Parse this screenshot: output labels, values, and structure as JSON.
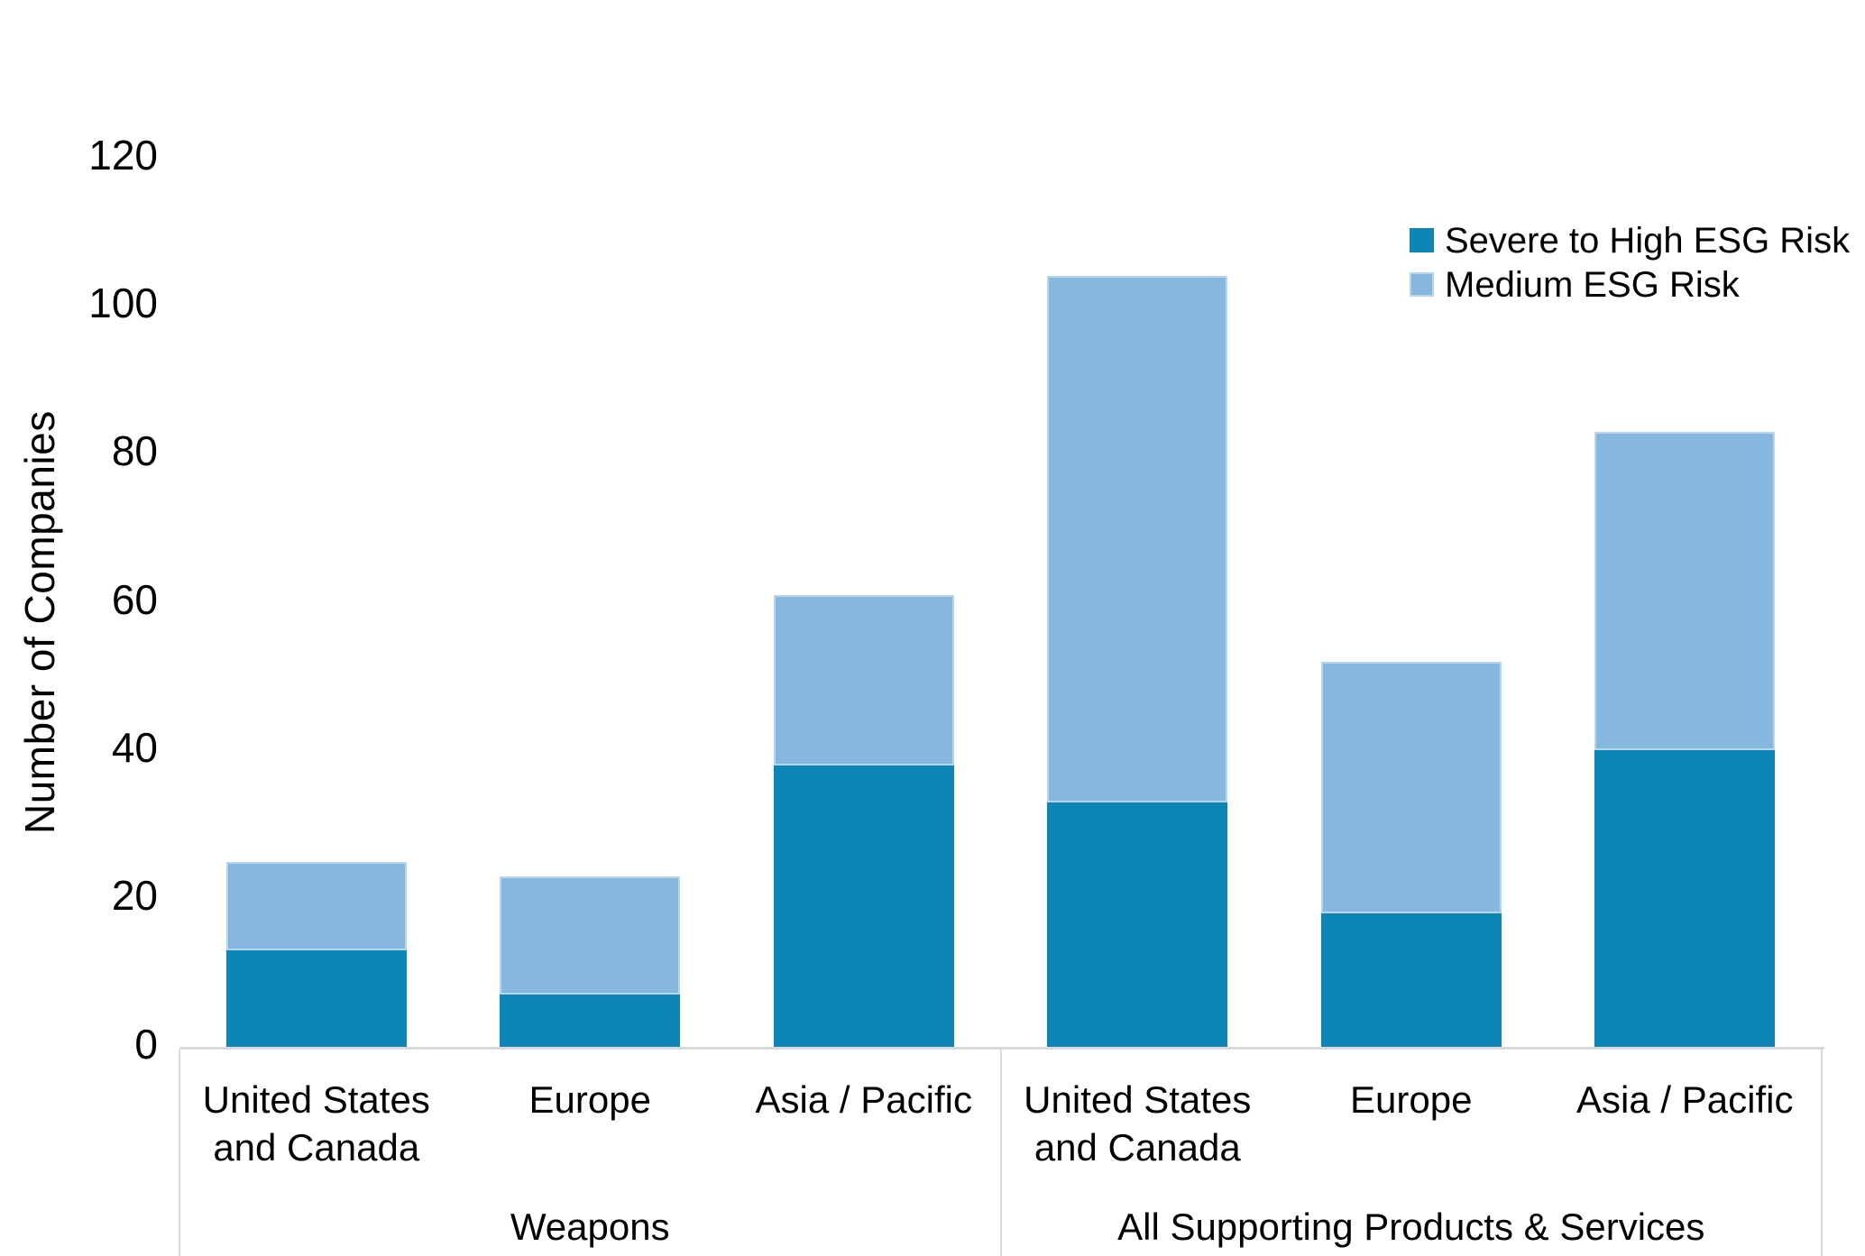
{
  "chart_data": {
    "type": "bar",
    "stacked": true,
    "title": "",
    "ylabel": "Number of Companies",
    "xlabel": "",
    "ylim": [
      0,
      120
    ],
    "yticks": [
      0,
      20,
      40,
      60,
      80,
      100,
      120
    ],
    "grid": false,
    "legend_position": "top-right",
    "groups": [
      {
        "label": "Weapons",
        "categories": [
          "United States and Canada",
          "Europe",
          "Asia / Pacific"
        ]
      },
      {
        "label": "All Supporting Products & Services",
        "categories": [
          "United States and Canada",
          "Europe",
          "Asia / Pacific"
        ]
      }
    ],
    "series": [
      {
        "name": "Severe to High ESG Risk",
        "color": "#0d86b7",
        "values": [
          13,
          7,
          38,
          33,
          18,
          40
        ]
      },
      {
        "name": "Medium ESG Risk",
        "color": "#86b8df",
        "values": [
          12,
          16,
          23,
          71,
          34,
          43
        ]
      }
    ],
    "stack_totals": [
      25,
      23,
      61,
      104,
      52,
      83
    ]
  },
  "colors": {
    "axis_line": "#d9d9d9",
    "text": "#000000"
  }
}
